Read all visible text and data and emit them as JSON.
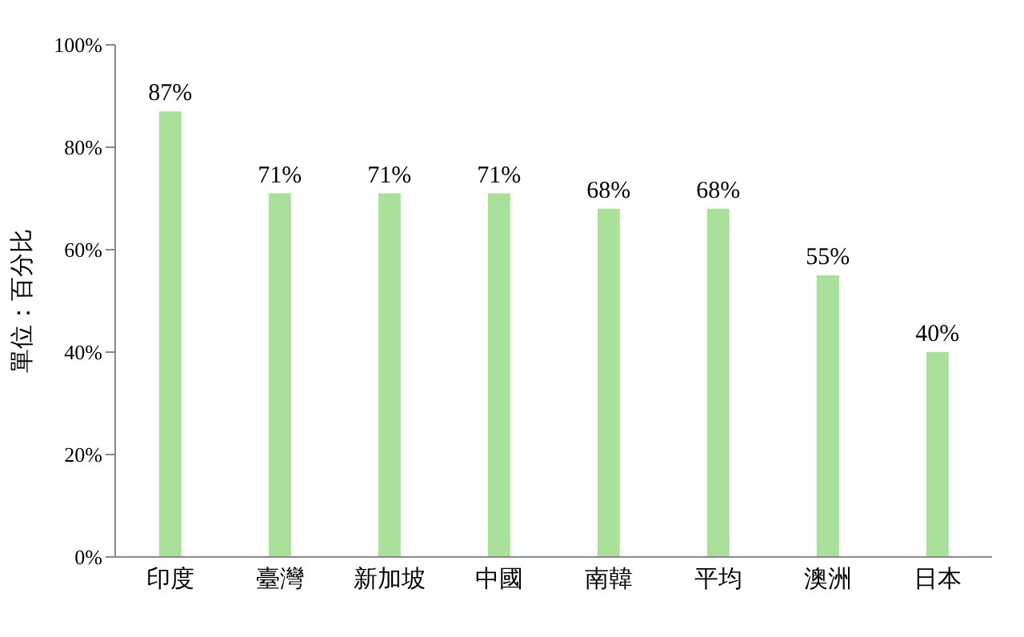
{
  "chart_data": {
    "type": "bar",
    "ylabel": "單位：百分比",
    "categories": [
      "印度",
      "臺灣",
      "新加坡",
      "中國",
      "南韓",
      "平均",
      "澳洲",
      "日本"
    ],
    "values": [
      87,
      71,
      71,
      71,
      68,
      68,
      55,
      40
    ],
    "value_labels": [
      "87%",
      "71%",
      "71%",
      "71%",
      "68%",
      "68%",
      "55%",
      "40%"
    ],
    "color": "#a9e09a",
    "ylim": [
      0,
      100
    ],
    "yticks": [
      {
        "value": 0,
        "label": "0%"
      },
      {
        "value": 20,
        "label": "20%"
      },
      {
        "value": 40,
        "label": "40%"
      },
      {
        "value": 60,
        "label": "60%"
      },
      {
        "value": 80,
        "label": "80%"
      },
      {
        "value": 100,
        "label": "100%"
      }
    ],
    "grid": false,
    "legend": false
  }
}
